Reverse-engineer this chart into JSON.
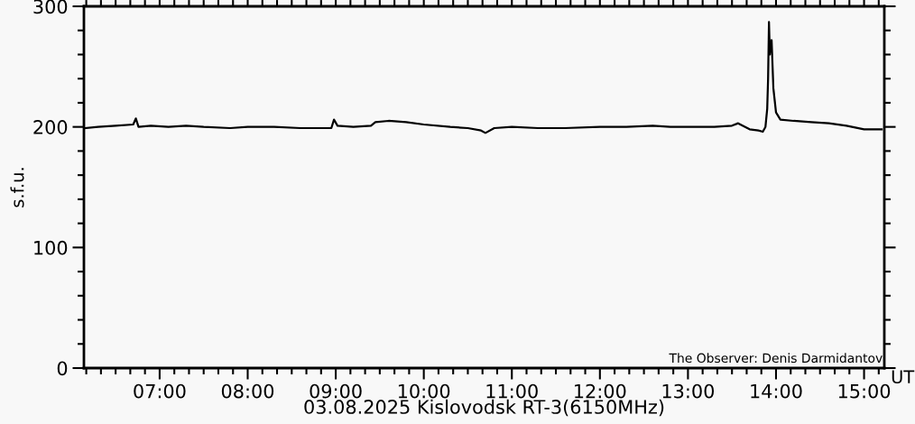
{
  "chart_data": {
    "type": "line",
    "xlabel": "03.08.2025 Kislovodsk RT-3(6150MHz)",
    "ylabel": "s.f.u.",
    "annotations": [
      "The Observer: Denis Darmidantov",
      "UT"
    ],
    "xlim": [
      6.14,
      15.23
    ],
    "ylim": [
      0,
      300
    ],
    "xticks": [
      {
        "value": 7,
        "label": "07:00"
      },
      {
        "value": 8,
        "label": "08:00"
      },
      {
        "value": 9,
        "label": "09:00"
      },
      {
        "value": 10,
        "label": "10:00"
      },
      {
        "value": 11,
        "label": "11:00"
      },
      {
        "value": 12,
        "label": "12:00"
      },
      {
        "value": 13,
        "label": "13:00"
      },
      {
        "value": 14,
        "label": "14:00"
      },
      {
        "value": 15,
        "label": "15:00"
      }
    ],
    "yticks": [
      0,
      100,
      200,
      300
    ],
    "grid": false,
    "legend": false,
    "marker": "none",
    "line_style": "solid",
    "series": [
      {
        "color": "#000000",
        "x": [
          6.15,
          6.3,
          6.5,
          6.7,
          6.73,
          6.76,
          6.9,
          7.1,
          7.3,
          7.5,
          7.8,
          8.0,
          8.3,
          8.6,
          8.95,
          8.98,
          9.02,
          9.2,
          9.4,
          9.45,
          9.6,
          9.8,
          10.0,
          10.3,
          10.5,
          10.65,
          10.7,
          10.8,
          11.0,
          11.3,
          11.6,
          12.0,
          12.3,
          12.6,
          12.8,
          13.0,
          13.3,
          13.5,
          13.57,
          13.7,
          13.8,
          13.85,
          13.88,
          13.9,
          13.91,
          13.92,
          13.93,
          13.94,
          13.95,
          13.97,
          14.0,
          14.05,
          14.2,
          14.4,
          14.6,
          14.8,
          15.0,
          15.2
        ],
        "values": [
          199,
          200,
          201,
          202,
          207,
          200,
          201,
          200,
          201,
          200,
          199,
          200,
          200,
          199,
          199,
          206,
          201,
          200,
          201,
          204,
          205,
          204,
          202,
          200,
          199,
          197,
          195,
          199,
          200,
          199,
          199,
          200,
          200,
          201,
          200,
          200,
          200,
          201,
          203,
          198,
          197,
          196,
          200,
          215,
          240,
          287,
          260,
          270,
          272,
          232,
          212,
          206,
          205,
          204,
          203,
          201,
          198,
          198
        ]
      }
    ]
  }
}
